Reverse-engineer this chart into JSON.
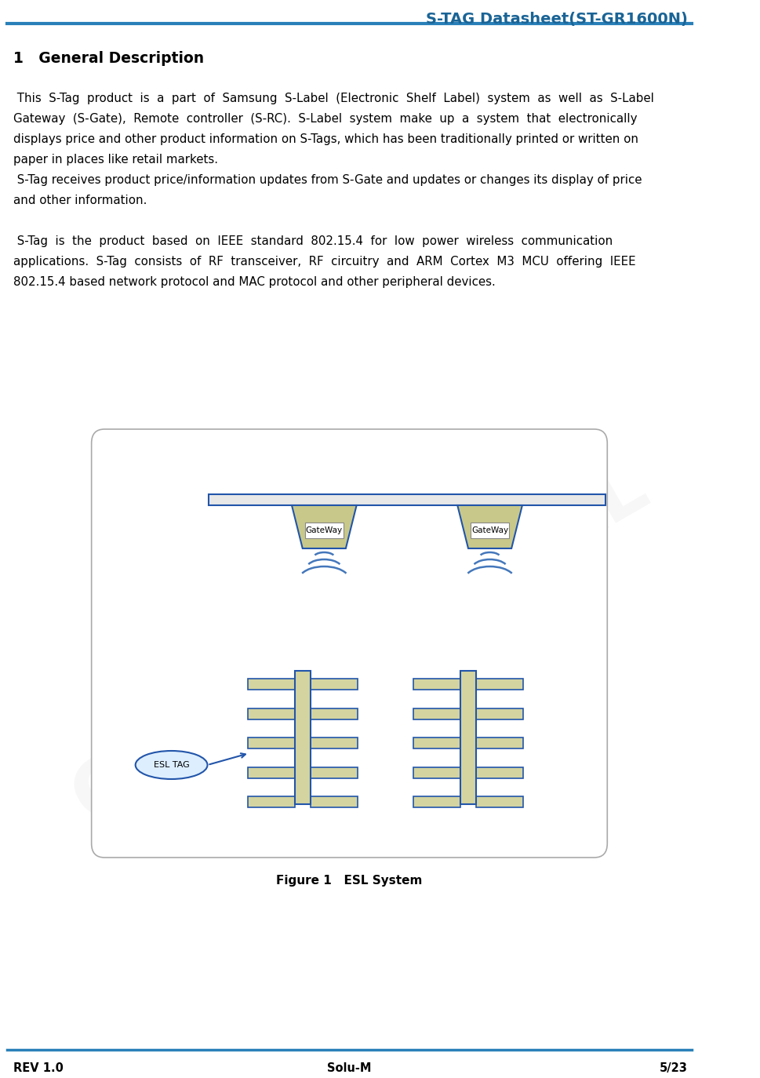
{
  "title": "S-TAG Datasheet(ST-GR1600N)",
  "title_color": "#1a6496",
  "header_line_color": "#2980b9",
  "section_heading": "1   General Description",
  "footer_left": "REV 1.0",
  "footer_center": "Solu-M",
  "footer_right": "5/23",
  "footer_line_color": "#2980b9",
  "bg_color": "#ffffff",
  "text_color": "#000000",
  "watermark_text": "CONFIDENTIAL",
  "figure_caption": "Figure 1   ESL System",
  "body1_lines": [
    " This  S-Tag  product  is  a  part  of  Samsung  S-Label  (Electronic  Shelf  Label)  system  as  well  as  S-Label",
    "Gateway  (S-Gate),  Remote  controller  (S-RC).  S-Label  system  make  up  a  system  that  electronically",
    "displays price and other product information on S-Tags, which has been traditionally printed or written on",
    "paper in places like retail markets."
  ],
  "body2_lines": [
    " S-Tag receives product price/information updates from S-Gate and updates or changes its display of price",
    "and other information."
  ],
  "body3_lines": [
    " S-Tag  is  the  product  based  on  IEEE  standard  802.15.4  for  low  power  wireless  communication",
    "applications.  S-Tag  consists  of  RF  transceiver,  RF  circuitry  and  ARM  Cortex  M3  MCU  offering  IEEE",
    "802.15.4 based network protocol and MAC protocol and other peripheral devices."
  ],
  "gateway_color": "#c8c88a",
  "gateway_border": "#2255aa",
  "shelf_color": "#d4d4a0",
  "shelf_border": "#2255aa",
  "rail_color": "#2255aa",
  "wifi_color": "#4477bb",
  "diagram_border": "#aaaaaa",
  "diagram_bg": "#ffffff"
}
